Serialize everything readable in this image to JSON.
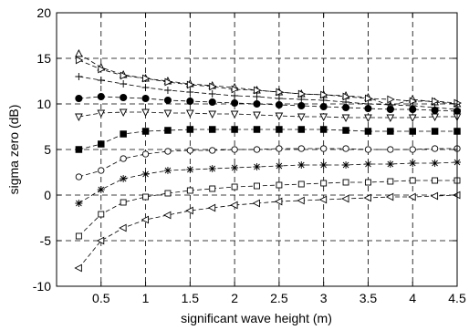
{
  "chart_data": {
    "type": "line",
    "xlabel": "significant wave height (m)",
    "ylabel": "sigma zero (dB)",
    "xlim": [
      0,
      4.5
    ],
    "ylim": [
      -10,
      20
    ],
    "xticks": [
      0.5,
      1,
      1.5,
      2,
      2.5,
      3,
      3.5,
      4,
      4.5
    ],
    "xtick_labels": [
      "0.5",
      "1",
      "1.5",
      "2",
      "2.5",
      "3",
      "3.5",
      "4",
      "4.5"
    ],
    "yticks": [
      -10,
      -5,
      0,
      5,
      10,
      15,
      20
    ],
    "ytick_labels": [
      "-10",
      "-5",
      "0",
      "5",
      "10",
      "15",
      "20"
    ],
    "grid": true,
    "line_style": "dashed",
    "x": [
      0.25,
      0.5,
      0.75,
      1.0,
      1.25,
      1.5,
      1.75,
      2.0,
      2.25,
      2.5,
      2.75,
      3.0,
      3.25,
      3.5,
      3.75,
      4.0,
      4.25,
      4.5
    ],
    "series": [
      {
        "marker": "triangle-up",
        "values": [
          15.5,
          14.0,
          13.2,
          12.8,
          12.5,
          12.2,
          12.0,
          11.8,
          11.5,
          11.3,
          11.1,
          11.0,
          10.9,
          10.7,
          9.8,
          10.5,
          10.2,
          10.0
        ]
      },
      {
        "marker": "triangle-right",
        "values": [
          14.8,
          13.8,
          13.1,
          12.8,
          12.4,
          12.1,
          11.9,
          11.6,
          11.5,
          11.3,
          11.1,
          11.0,
          10.8,
          10.6,
          10.5,
          10.3,
          10.3,
          10.1
        ]
      },
      {
        "marker": "plus",
        "values": [
          13.0,
          12.6,
          12.2,
          11.8,
          11.5,
          11.3,
          11.1,
          10.9,
          10.8,
          10.6,
          10.5,
          10.4,
          10.2,
          10.0,
          9.9,
          9.8,
          9.6,
          9.4
        ]
      },
      {
        "marker": "circle-filled",
        "values": [
          10.6,
          10.8,
          10.7,
          10.6,
          10.4,
          10.3,
          10.2,
          10.1,
          10.0,
          9.9,
          9.8,
          9.7,
          9.6,
          9.5,
          9.4,
          9.4,
          9.3,
          9.2
        ]
      },
      {
        "marker": "triangle-down",
        "values": [
          8.6,
          9.0,
          9.1,
          9.1,
          9.0,
          9.0,
          8.9,
          8.9,
          8.8,
          8.7,
          8.6,
          8.6,
          8.5,
          8.5,
          8.5,
          8.5,
          8.6,
          8.6
        ]
      },
      {
        "marker": "square-filled",
        "values": [
          5.0,
          5.6,
          6.7,
          7.0,
          7.1,
          7.2,
          7.2,
          7.2,
          7.2,
          7.2,
          7.2,
          7.2,
          7.1,
          7.0,
          7.0,
          7.0,
          7.0,
          7.0
        ]
      },
      {
        "marker": "circle-open",
        "values": [
          2.0,
          2.7,
          4.0,
          4.5,
          4.8,
          4.9,
          4.9,
          5.0,
          5.0,
          5.1,
          5.1,
          5.1,
          5.1,
          5.0,
          5.0,
          5.0,
          5.1,
          5.1
        ]
      },
      {
        "marker": "star",
        "values": [
          -0.9,
          0.6,
          1.8,
          2.3,
          2.7,
          2.8,
          2.9,
          3.0,
          3.1,
          3.2,
          3.3,
          3.3,
          3.3,
          3.4,
          3.4,
          3.5,
          3.5,
          3.6
        ]
      },
      {
        "marker": "square-open",
        "values": [
          -4.5,
          -2.1,
          -0.8,
          -0.2,
          0.2,
          0.5,
          0.7,
          0.9,
          1.0,
          1.1,
          1.2,
          1.3,
          1.4,
          1.4,
          1.5,
          1.6,
          1.6,
          1.6
        ]
      },
      {
        "marker": "triangle-left",
        "values": [
          -8.0,
          -5.0,
          -3.6,
          -2.7,
          -2.2,
          -1.7,
          -1.4,
          -1.1,
          -0.9,
          -0.7,
          -0.6,
          -0.5,
          -0.4,
          -0.3,
          -0.2,
          -0.2,
          -0.1,
          0.0
        ]
      }
    ]
  }
}
